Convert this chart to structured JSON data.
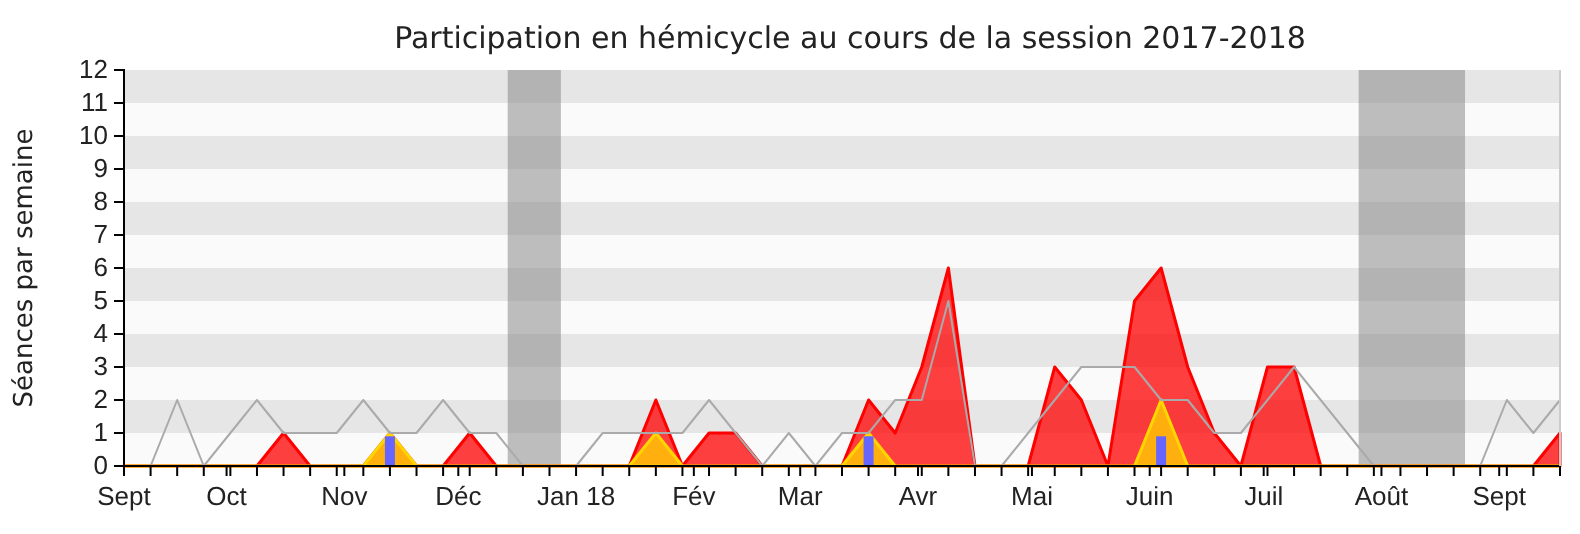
{
  "chart_data": {
    "type": "area",
    "title": "Participation en hémicycle au cours de la session 2017-2018",
    "ylabel": "Séances par semaine",
    "x": [
      "2017-09-04",
      "2017-09-11",
      "2017-09-18",
      "2017-09-25",
      "2017-10-02",
      "2017-10-09",
      "2017-10-16",
      "2017-10-23",
      "2017-10-30",
      "2017-11-06",
      "2017-11-13",
      "2017-11-20",
      "2017-11-27",
      "2017-12-04",
      "2017-12-11",
      "2017-12-18",
      "2017-12-25",
      "2018-01-01",
      "2018-01-08",
      "2018-01-15",
      "2018-01-22",
      "2018-01-29",
      "2018-02-05",
      "2018-02-12",
      "2018-02-19",
      "2018-02-26",
      "2018-03-05",
      "2018-03-12",
      "2018-03-19",
      "2018-03-26",
      "2018-04-02",
      "2018-04-09",
      "2018-04-16",
      "2018-04-23",
      "2018-04-30",
      "2018-05-07",
      "2018-05-14",
      "2018-05-21",
      "2018-05-28",
      "2018-06-04",
      "2018-06-11",
      "2018-06-18",
      "2018-06-25",
      "2018-07-02",
      "2018-07-09",
      "2018-07-16",
      "2018-07-23",
      "2018-07-30",
      "2018-08-06",
      "2018-08-13",
      "2018-08-20",
      "2018-08-27",
      "2018-09-03",
      "2018-09-10",
      "2018-09-17"
    ],
    "xlim": [
      "2017-09-04",
      "2018-09-17"
    ],
    "xticks": [
      {
        "value": "2017-09-04",
        "label": "Sept"
      },
      {
        "value": "2017-09-11",
        "label": null
      },
      {
        "value": "2017-09-18",
        "label": null
      },
      {
        "value": "2017-09-25",
        "label": null
      },
      {
        "value": "2017-10-01",
        "label": "Oct"
      },
      {
        "value": "2017-10-02",
        "label": null
      },
      {
        "value": "2017-10-09",
        "label": null
      },
      {
        "value": "2017-10-16",
        "label": null
      },
      {
        "value": "2017-10-23",
        "label": null
      },
      {
        "value": "2017-10-30",
        "label": null
      },
      {
        "value": "2017-11-01",
        "label": "Nov"
      },
      {
        "value": "2017-11-06",
        "label": null
      },
      {
        "value": "2017-11-13",
        "label": null
      },
      {
        "value": "2017-11-20",
        "label": null
      },
      {
        "value": "2017-11-27",
        "label": null
      },
      {
        "value": "2017-12-01",
        "label": "Déc"
      },
      {
        "value": "2017-12-04",
        "label": null
      },
      {
        "value": "2017-12-11",
        "label": null
      },
      {
        "value": "2017-12-18",
        "label": null
      },
      {
        "value": "2017-12-25",
        "label": null
      },
      {
        "value": "2018-01-01",
        "label": "Jan 18"
      },
      {
        "value": "2018-01-08",
        "label": null
      },
      {
        "value": "2018-01-15",
        "label": null
      },
      {
        "value": "2018-01-22",
        "label": null
      },
      {
        "value": "2018-01-29",
        "label": null
      },
      {
        "value": "2018-02-01",
        "label": "Fév"
      },
      {
        "value": "2018-02-05",
        "label": null
      },
      {
        "value": "2018-02-12",
        "label": null
      },
      {
        "value": "2018-02-19",
        "label": null
      },
      {
        "value": "2018-02-26",
        "label": null
      },
      {
        "value": "2018-03-01",
        "label": "Mar"
      },
      {
        "value": "2018-03-05",
        "label": null
      },
      {
        "value": "2018-03-12",
        "label": null
      },
      {
        "value": "2018-03-19",
        "label": null
      },
      {
        "value": "2018-03-26",
        "label": null
      },
      {
        "value": "2018-04-01",
        "label": "Avr"
      },
      {
        "value": "2018-04-02",
        "label": null
      },
      {
        "value": "2018-04-09",
        "label": null
      },
      {
        "value": "2018-04-16",
        "label": null
      },
      {
        "value": "2018-04-23",
        "label": null
      },
      {
        "value": "2018-04-30",
        "label": null
      },
      {
        "value": "2018-05-01",
        "label": "Mai"
      },
      {
        "value": "2018-05-07",
        "label": null
      },
      {
        "value": "2018-05-14",
        "label": null
      },
      {
        "value": "2018-05-21",
        "label": null
      },
      {
        "value": "2018-05-28",
        "label": null
      },
      {
        "value": "2018-06-01",
        "label": "Juin"
      },
      {
        "value": "2018-06-04",
        "label": null
      },
      {
        "value": "2018-06-11",
        "label": null
      },
      {
        "value": "2018-06-18",
        "label": null
      },
      {
        "value": "2018-06-25",
        "label": null
      },
      {
        "value": "2018-07-01",
        "label": "Juil"
      },
      {
        "value": "2018-07-02",
        "label": null
      },
      {
        "value": "2018-07-09",
        "label": null
      },
      {
        "value": "2018-07-16",
        "label": null
      },
      {
        "value": "2018-07-23",
        "label": null
      },
      {
        "value": "2018-07-30",
        "label": null
      },
      {
        "value": "2018-08-01",
        "label": "Août"
      },
      {
        "value": "2018-08-06",
        "label": null
      },
      {
        "value": "2018-08-13",
        "label": null
      },
      {
        "value": "2018-08-20",
        "label": null
      },
      {
        "value": "2018-08-27",
        "label": null
      },
      {
        "value": "2018-09-01",
        "label": "Sept"
      },
      {
        "value": "2018-09-03",
        "label": null
      },
      {
        "value": "2018-09-10",
        "label": null
      },
      {
        "value": "2018-09-17",
        "label": null
      }
    ],
    "ylim": [
      0,
      12
    ],
    "yticks": [
      0,
      1,
      2,
      3,
      4,
      5,
      6,
      7,
      8,
      9,
      10,
      11,
      12
    ],
    "bands": [
      {
        "axis": "x",
        "from": "2017-12-14",
        "to": "2017-12-28",
        "color": "#808080"
      },
      {
        "axis": "x",
        "from": "2018-07-26",
        "to": "2018-08-23",
        "color": "#808080"
      }
    ],
    "series": [
      {
        "color": "#ff0000",
        "values": [
          0,
          0,
          0,
          0,
          0,
          0,
          1,
          0,
          0,
          0,
          1,
          0,
          0,
          1,
          0,
          0,
          0,
          0,
          0,
          0,
          2,
          0,
          1,
          1,
          0,
          0,
          0,
          0,
          2,
          1,
          3,
          6,
          0,
          0,
          0,
          3,
          2,
          0,
          5,
          6,
          3,
          1,
          0,
          3,
          3,
          0,
          0,
          0,
          0,
          0,
          0,
          0,
          0,
          0,
          1
        ]
      },
      {
        "type": "area",
        "color": "#ffd700",
        "values": [
          0,
          0,
          0,
          0,
          0,
          0,
          0,
          0,
          0,
          0,
          1,
          0,
          0,
          0,
          0,
          0,
          0,
          0,
          0,
          0,
          1,
          0,
          0,
          0,
          0,
          0,
          0,
          0,
          1,
          0,
          0,
          0,
          0,
          0,
          0,
          0,
          0,
          0,
          0,
          2,
          0,
          0,
          0,
          0,
          0,
          0,
          0,
          0,
          0,
          0,
          0,
          0,
          0,
          0,
          0
        ]
      },
      {
        "type": "bar",
        "color": "#6666ff",
        "values": [
          0,
          0,
          0,
          0,
          0,
          0,
          0,
          0,
          0,
          0,
          0.9,
          0,
          0,
          0,
          0,
          0,
          0,
          0,
          0,
          0,
          0,
          0,
          0,
          0,
          0,
          0,
          0,
          0,
          0.9,
          0,
          0,
          0,
          0,
          0,
          0,
          0,
          0,
          0,
          0,
          0.9,
          0,
          0,
          0,
          0,
          0,
          0,
          0,
          0,
          0,
          0,
          0,
          0,
          0,
          0,
          0
        ]
      },
      {
        "type": "line",
        "color": "#aaaaaa",
        "values": [
          null,
          0,
          2,
          0,
          1,
          2,
          1,
          1,
          1,
          2,
          1,
          1,
          2,
          1,
          1,
          0,
          0,
          0,
          1,
          1,
          1,
          1,
          2,
          1,
          0,
          1,
          0,
          1,
          1,
          2,
          2,
          5,
          0,
          0,
          1,
          2,
          3,
          3,
          3,
          2,
          2,
          1,
          1,
          2,
          3,
          2,
          1,
          0,
          0,
          0,
          0,
          0,
          2,
          1,
          2
        ]
      }
    ]
  }
}
